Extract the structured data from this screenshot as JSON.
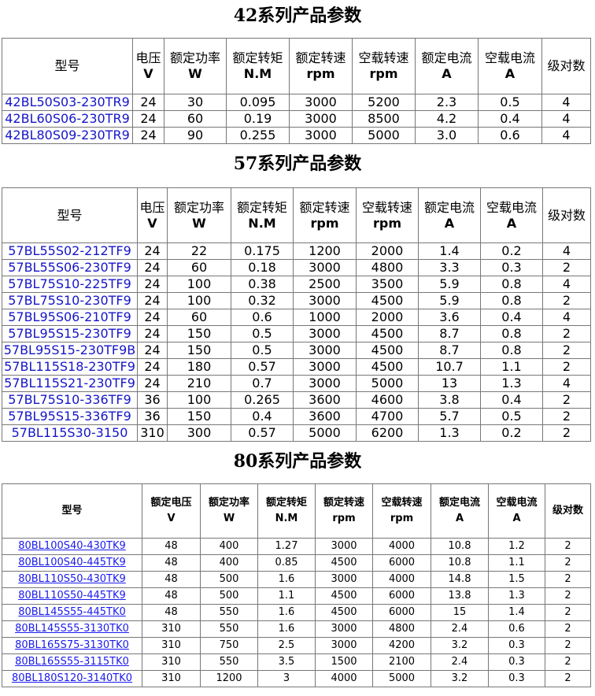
{
  "tables": [
    {
      "title": "42系列产品参数",
      "headers": [
        [
          "型号",
          ""
        ],
        [
          "电压",
          "V"
        ],
        [
          "额定功率",
          "W"
        ],
        [
          "额定转矩",
          "N.M"
        ],
        [
          "额定转速",
          "rpm"
        ],
        [
          "空载转速",
          "rpm"
        ],
        [
          "额定电流",
          "A"
        ],
        [
          "空载电流",
          "A"
        ],
        [
          "级对数",
          ""
        ]
      ],
      "rows": [
        [
          "42BL50S03-230TR9",
          "24",
          "30",
          "0.095",
          "3000",
          "5200",
          "2.3",
          "0.5",
          "4"
        ],
        [
          "42BL60S06-230TR9",
          "24",
          "60",
          "0.19",
          "3000",
          "8500",
          "4.2",
          "0.4",
          "4"
        ],
        [
          "42BL80S09-230TR9",
          "24",
          "90",
          "0.255",
          "3000",
          "5000",
          "3.0",
          "0.6",
          "4"
        ]
      ]
    },
    {
      "title": "57系列产品参数",
      "headers": [
        [
          "型号",
          ""
        ],
        [
          "电压",
          "V"
        ],
        [
          "额定功率",
          "W"
        ],
        [
          "额定转矩",
          "N.M"
        ],
        [
          "额定转速",
          "rpm"
        ],
        [
          "空载转速",
          "rpm"
        ],
        [
          "额定电流",
          "A"
        ],
        [
          "空载电流",
          "A"
        ],
        [
          "级对数",
          ""
        ]
      ],
      "rows": [
        [
          "57BL55S02-212TF9",
          "24",
          "22",
          "0.175",
          "1200",
          "2000",
          "1.4",
          "0.2",
          "4"
        ],
        [
          "57BL55S06-230TF9",
          "24",
          "60",
          "0.18",
          "3000",
          "4800",
          "3.3",
          "0.3",
          "2"
        ],
        [
          "57BL75S10-225TF9",
          "24",
          "100",
          "0.38",
          "2500",
          "3500",
          "5.9",
          "0.8",
          "4"
        ],
        [
          "57BL75S10-230TF9",
          "24",
          "100",
          "0.32",
          "3000",
          "4500",
          "5.9",
          "0.8",
          "2"
        ],
        [
          "57BL95S06-210TF9",
          "24",
          "60",
          "0.6",
          "1000",
          "2000",
          "3.6",
          "0.4",
          "4"
        ],
        [
          "57BL95S15-230TF9",
          "24",
          "150",
          "0.5",
          "3000",
          "4500",
          "8.7",
          "0.8",
          "2"
        ],
        [
          "57BL95S15-230TF9B",
          "24",
          "150",
          "0.5",
          "3000",
          "4500",
          "8.7",
          "0.8",
          "2"
        ],
        [
          "57BL115S18-230TF9",
          "24",
          "180",
          "0.57",
          "3000",
          "4500",
          "10.7",
          "1.1",
          "2"
        ],
        [
          "57BL115S21-230TF9",
          "24",
          "210",
          "0.7",
          "3000",
          "5000",
          "13",
          "1.3",
          "4"
        ],
        [
          "57BL75S10-336TF9",
          "36",
          "100",
          "0.265",
          "3600",
          "4600",
          "3.8",
          "0.4",
          "2"
        ],
        [
          "57BL95S15-336TF9",
          "36",
          "150",
          "0.4",
          "3600",
          "4700",
          "5.7",
          "0.5",
          "2"
        ],
        [
          "57BL115S30-3150",
          "310",
          "300",
          "0.57",
          "5000",
          "6200",
          "1.3",
          "0.2",
          "2"
        ]
      ]
    },
    {
      "title": "80系列产品参数",
      "headers": [
        [
          "型号",
          ""
        ],
        [
          "额定电压",
          "V"
        ],
        [
          "额定功率",
          "W"
        ],
        [
          "额定转矩",
          "N.M"
        ],
        [
          "额定转速",
          "rpm"
        ],
        [
          "空载转速",
          "rpm"
        ],
        [
          "额定电流",
          "A"
        ],
        [
          "空载电流",
          "A"
        ],
        [
          "级对数",
          ""
        ]
      ],
      "rows": [
        [
          "80BL100S40-430TK9",
          "48",
          "400",
          "1.27",
          "3000",
          "4000",
          "10.8",
          "1.2",
          "2"
        ],
        [
          "80BL100S40-445TK9",
          "48",
          "400",
          "0.85",
          "4500",
          "6000",
          "10.8",
          "1.1",
          "2"
        ],
        [
          "80BL110S50-430TK9",
          "48",
          "500",
          "1.6",
          "3000",
          "4000",
          "14.8",
          "1.5",
          "2"
        ],
        [
          "80BL110S50-445TK9",
          "48",
          "500",
          "1.1",
          "4500",
          "6000",
          "13.8",
          "1.3",
          "2"
        ],
        [
          "80BL145S55-445TK0",
          "48",
          "550",
          "1.6",
          "4500",
          "6000",
          "15",
          "1.4",
          "2"
        ],
        [
          "80BL145S55-3130TK0",
          "310",
          "550",
          "1.6",
          "3000",
          "4800",
          "2.4",
          "0.6",
          "2"
        ],
        [
          "80BL165S75-3130TK0",
          "310",
          "750",
          "2.5",
          "3000",
          "4200",
          "3.2",
          "0.3",
          "2"
        ],
        [
          "80BL165S55-3115TK0",
          "310",
          "550",
          "3.5",
          "1500",
          "2100",
          "2.4",
          "0.3",
          "2"
        ],
        [
          "80BL180S120-3140TK0",
          "310",
          "1200",
          "3",
          "4000",
          "5000",
          "3.2",
          "0.3",
          "2"
        ]
      ]
    }
  ]
}
